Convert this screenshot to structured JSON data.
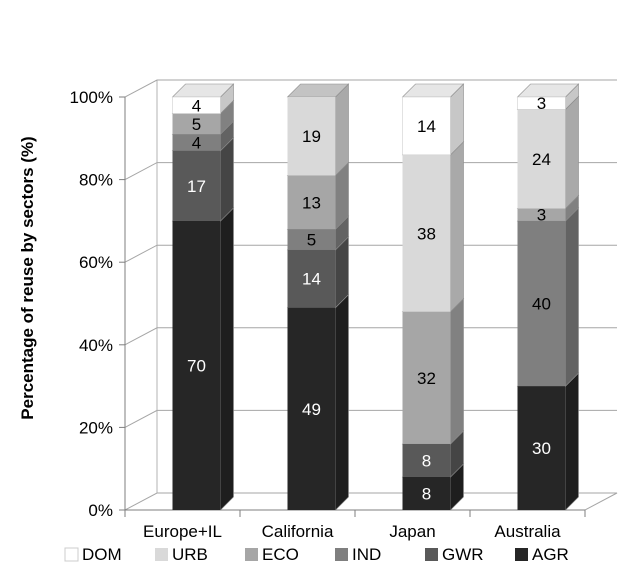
{
  "chart_data": {
    "type": "bar",
    "stacked": true,
    "three_d": true,
    "title": "",
    "xlabel": "",
    "ylabel": "Percentage of reuse by sectors (%)",
    "ylim": [
      0,
      100
    ],
    "y_ticks": [
      "0%",
      "20%",
      "40%",
      "60%",
      "80%",
      "100%"
    ],
    "categories": [
      "Europe+IL",
      "California",
      "Japan",
      "Australia"
    ],
    "series": [
      {
        "name": "AGR",
        "color": "#262626",
        "label_color": "#ffffff",
        "values": [
          70,
          49,
          8,
          30
        ]
      },
      {
        "name": "GWR",
        "color": "#595959",
        "label_color": "#ffffff",
        "values": [
          17,
          14,
          8,
          0
        ]
      },
      {
        "name": "IND",
        "color": "#7f7f7f",
        "label_color": "#000000",
        "values": [
          4,
          5,
          0,
          40
        ]
      },
      {
        "name": "ECO",
        "color": "#a6a6a6",
        "label_color": "#000000",
        "values": [
          5,
          13,
          32,
          3
        ]
      },
      {
        "name": "URB",
        "color": "#d9d9d9",
        "label_color": "#000000",
        "values": [
          0,
          19,
          38,
          24
        ]
      },
      {
        "name": "DOM",
        "color": "#ffffff",
        "label_color": "#000000",
        "values": [
          4,
          0,
          14,
          3
        ]
      }
    ],
    "data_labels": [
      {
        "category": "Europe+IL",
        "series": "AGR",
        "text": "70"
      },
      {
        "category": "Europe+IL",
        "series": "GWR",
        "text": "17"
      },
      {
        "category": "Europe+IL",
        "series": "IND",
        "text": "4"
      },
      {
        "category": "Europe+IL",
        "series": "ECO",
        "text": "5"
      },
      {
        "category": "Europe+IL",
        "series": "DOM",
        "text": "4"
      },
      {
        "category": "California",
        "series": "AGR",
        "text": "49"
      },
      {
        "category": "California",
        "series": "GWR",
        "text": "14"
      },
      {
        "category": "California",
        "series": "IND",
        "text": "5"
      },
      {
        "category": "California",
        "series": "ECO",
        "text": "13"
      },
      {
        "category": "California",
        "series": "URB",
        "text": "19"
      },
      {
        "category": "Japan",
        "series": "AGR",
        "text": "8"
      },
      {
        "category": "Japan",
        "series": "GWR",
        "text": "8"
      },
      {
        "category": "Japan",
        "series": "ECO",
        "text": "32"
      },
      {
        "category": "Japan",
        "series": "URB",
        "text": "38"
      },
      {
        "category": "Japan",
        "series": "DOM",
        "text": "14"
      },
      {
        "category": "Australia",
        "series": "AGR",
        "text": "30"
      },
      {
        "category": "Australia",
        "series": "IND",
        "text": "40"
      },
      {
        "category": "Australia",
        "series": "ECO",
        "text": "3"
      },
      {
        "category": "Australia",
        "series": "URB",
        "text": "24"
      },
      {
        "category": "Australia",
        "series": "DOM",
        "text": "3"
      }
    ],
    "legend": {
      "position": "bottom",
      "order": [
        "DOM",
        "URB",
        "ECO",
        "IND",
        "GWR",
        "AGR"
      ]
    },
    "grid": true
  }
}
